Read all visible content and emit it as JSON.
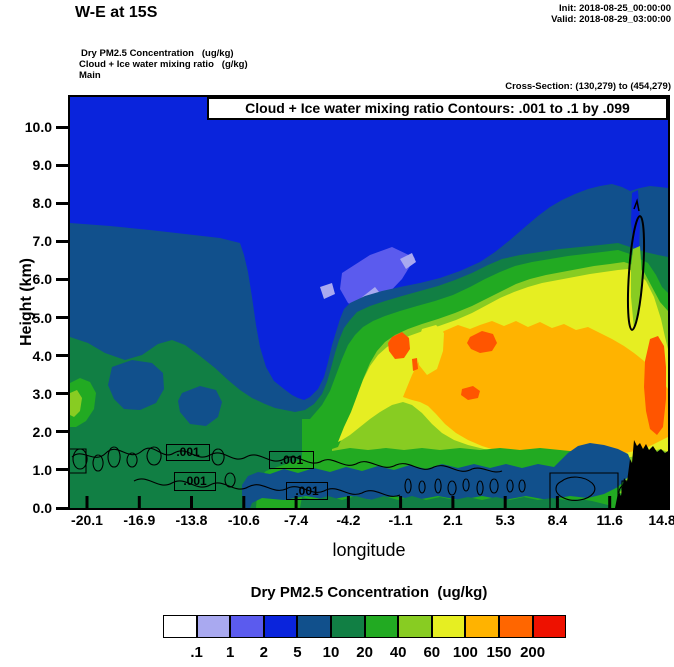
{
  "header": {
    "title": "W-E at 15S",
    "init_label": "Init: 2018-08-25_00:00:00",
    "valid_label": "Valid: 2018-08-29_03:00:00",
    "field_fill": "Dry PM2.5 Concentration   (ug/kg)",
    "field_contour": "Cloud + Ice water mixing ratio   (g/kg)",
    "field_domain": "Main",
    "cross_section": "Cross-Section: (130,279) to (454,279)"
  },
  "plot": {
    "contour_banner": "Cloud + Ice water mixing ratio Contours: .001 to .1 by .099",
    "xlabel": "longitude",
    "ylabel": "Height (km)",
    "x_tick_labels": [
      "-20.1",
      "-16.9",
      "-13.8",
      "-10.6",
      "-7.4",
      "-4.2",
      "-1.1",
      "2.1",
      "5.3",
      "8.4",
      "11.6",
      "14.8"
    ],
    "y_tick_labels": [
      "0.0",
      "1.0",
      "2.0",
      "3.0",
      "4.0",
      "5.0",
      "6.0",
      "7.0",
      "8.0",
      "9.0",
      "10.0"
    ],
    "contour_labels": [
      ".001",
      ".001",
      ".001",
      ".001"
    ]
  },
  "colorbar": {
    "title": "Dry PM2.5 Concentration  (ug/kg)",
    "boundary_labels": [
      ".1",
      "1",
      "2",
      "5",
      "10",
      "20",
      "40",
      "60",
      "100",
      "150",
      "200"
    ],
    "cell_colors": [
      "#FFFFFF",
      "#A9A9F0",
      "#5B5BEE",
      "#0A24DC",
      "#11508C",
      "#117F44",
      "#22AA22",
      "#88CC22",
      "#E6EE22",
      "#FFB300",
      "#FF6600",
      "#EE1100"
    ]
  },
  "chart_data": {
    "type": "heatmap",
    "title": "W-E at 15S",
    "xlabel": "longitude",
    "ylabel": "Height (km)",
    "xlim": [
      -20.1,
      14.8
    ],
    "ylim": [
      0.0,
      10.8
    ],
    "x_ticks": [
      -20.1,
      -16.9,
      -13.8,
      -10.6,
      -7.4,
      -4.2,
      -1.1,
      2.1,
      5.3,
      8.4,
      11.6,
      14.8
    ],
    "y_ticks": [
      0.0,
      1.0,
      2.0,
      3.0,
      4.0,
      5.0,
      6.0,
      7.0,
      8.0,
      9.0,
      10.0
    ],
    "fill_field": "Dry PM2.5 Concentration (ug/kg)",
    "fill_level_boundaries": [
      0.1,
      1,
      2,
      5,
      10,
      20,
      40,
      60,
      100,
      150,
      200
    ],
    "fill_colors": [
      "#FFFFFF",
      "#A9A9F0",
      "#5B5BEE",
      "#0A24DC",
      "#11508C",
      "#117F44",
      "#22AA22",
      "#88CC22",
      "#E6EE22",
      "#FFB300",
      "#FF6600",
      "#EE1100"
    ],
    "overlay_contours": {
      "field": "Cloud + Ice water mixing ratio (g/kg)",
      "levels": [
        0.001,
        0.1
      ],
      "visible_labels": ".001",
      "label_locations_lon_km": [
        [
          -13.3,
          1.5
        ],
        [
          -12.9,
          0.75
        ],
        [
          -7.1,
          1.35
        ],
        [
          -6.2,
          0.5
        ]
      ]
    },
    "init_time": "2018-08-25_00:00:00",
    "valid_time": "2018-08-29_03:00:00",
    "cross_section_grid": {
      "from": [
        130,
        279
      ],
      "to": [
        454,
        279
      ]
    },
    "features": [
      "Blue (5-10 ug/kg) region fills upper troposphere above ~7-8 km across all longitudes",
      "Dark steel-blue (10-20) band from ~6-8 km sloping down toward lon 11 then dark green/green layers below",
      "Main elevated PM2.5 plume (60-150 ug/kg, orange) from lon ~ -6 to 14.8 between ~2 and 5 km",
      "Local maxima >150 ug/kg (red-orange) near lon -1.5 and 1.5 at ~4-4.5 km and near lon 14.5 at 3-4.5 km",
      "Yellow (100) tongue extends up to ~6.5 km near lon 12.8 with thin cloud contour ellipse from 5.5-7.3 km",
      "Shallow steel-blue (10-20) band 0.3-1.5 km from lon -13 to 11 under the plume",
      "Cloud+ice .001 contour loops along 0-1.7 km from lon -20 to 11",
      "Black terrain silhouette rising to ~2.2 km near right edge (lon 13.2-14.8)",
      "Small green 20-40 ug/kg pocket at left edge (lon -20) near 2-3 km"
    ]
  }
}
